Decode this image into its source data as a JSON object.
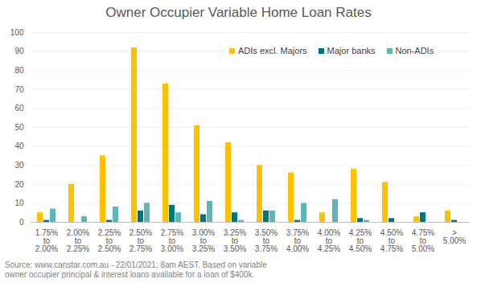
{
  "chart_data": {
    "type": "bar",
    "title": "Owner Occupier Variable Home Loan Rates",
    "caption": "Source: www.canstar.com.au - 22/01/2021; 8am AEST. Based on variable owner occupier principal & interest loans available for a loan of $400k.",
    "categories": [
      "1.75% to 2.00%",
      "2.00% to 2.25%",
      "2.25% to 2.50%",
      "2.50% to 2.75%",
      "2.75% to 3.00%",
      "3.00% to 3.25%",
      "3.25% to 3.50%",
      "3.50% to 3.75%",
      "3.75% to 4.00%",
      "4.00% to 4.25%",
      "4.25% to 4.50%",
      "4.50% to 4.75%",
      "4.75% to 5.00%",
      "> 5.00%"
    ],
    "series": [
      {
        "name": "ADIs excl. Majors",
        "color": "#FFC000",
        "values": [
          5,
          20,
          35,
          92,
          73,
          51,
          42,
          30,
          26,
          5,
          28,
          21,
          3,
          6
        ]
      },
      {
        "name": "Major banks",
        "color": "#00767C",
        "values": [
          1,
          0,
          1,
          6,
          9,
          4,
          5,
          6,
          1,
          0,
          2,
          2,
          5,
          1
        ]
      },
      {
        "name": "Non-ADIs",
        "color": "#5FB6B8",
        "values": [
          7,
          3,
          8,
          10,
          5,
          11,
          1,
          6,
          10,
          12,
          1,
          0,
          0,
          0
        ]
      }
    ],
    "ylim": [
      0,
      100
    ],
    "yticks": [
      0,
      10,
      20,
      30,
      40,
      50,
      60,
      70,
      80,
      90,
      100
    ],
    "grid": true,
    "legend": "top-right"
  }
}
